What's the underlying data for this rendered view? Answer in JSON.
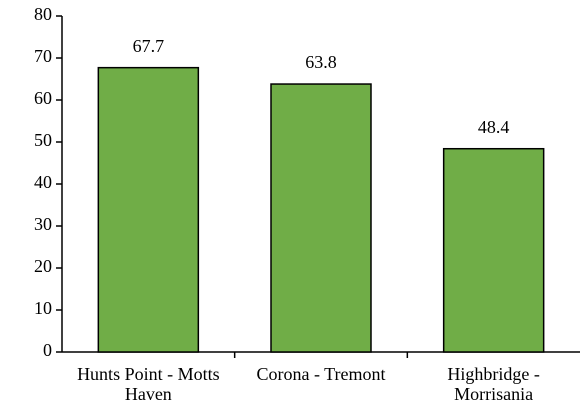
{
  "chart_data": {
    "type": "bar",
    "categories": [
      "Hunts Point - Motts Haven",
      "Corona - Tremont",
      "Highbridge - Morrisania"
    ],
    "values": [
      67.7,
      63.8,
      48.4
    ],
    "color": "#70ad47",
    "ylim": [
      0,
      80
    ],
    "yticks": [
      0,
      10,
      20,
      30,
      40,
      50,
      60,
      70,
      80
    ],
    "grid": false
  }
}
